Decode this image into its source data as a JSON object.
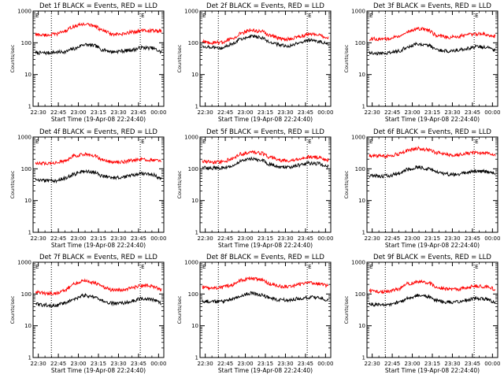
{
  "colors": {
    "events": "#000000",
    "lld": "#ff0000",
    "axis": "#000000",
    "background": "#ffffff"
  },
  "chart_data": [
    {
      "type": "line",
      "title": "Det 1f BLACK = Events, RED = LLD",
      "xlabel": "Start Time (19-Apr-08 22:24:40)",
      "ylabel": "Counts/sec",
      "y_scale": "log",
      "ylim": [
        1,
        1000
      ],
      "y_ticks": [
        "1",
        "10",
        "100",
        "1000"
      ],
      "x_ticks": [
        "22:30",
        "22:45",
        "23:00",
        "23:15",
        "23:30",
        "23:45",
        "00:00"
      ],
      "marker_labels": [
        "E",
        "E"
      ],
      "series": [
        {
          "role": "events",
          "values": [
            48,
            48,
            50,
            52,
            65,
            88,
            82,
            60,
            52,
            55,
            60,
            70,
            68,
            52
          ]
        },
        {
          "role": "lld",
          "values": [
            180,
            175,
            185,
            230,
            330,
            390,
            350,
            240,
            180,
            185,
            220,
            240,
            240,
            230
          ]
        }
      ]
    },
    {
      "type": "line",
      "title": "Det 2f BLACK = Events, RED = LLD",
      "xlabel": "Start Time (19-Apr-08 22:24:40)",
      "ylabel": "Counts/sec",
      "y_scale": "log",
      "ylim": [
        1,
        1000
      ],
      "y_ticks": [
        "1",
        "10",
        "100",
        "1000"
      ],
      "x_ticks": [
        "22:30",
        "22:45",
        "23:00",
        "23:15",
        "23:30",
        "23:45",
        "00:00"
      ],
      "marker_labels": [
        "E",
        "E"
      ],
      "series": [
        {
          "role": "events",
          "values": [
            78,
            72,
            70,
            88,
            130,
            165,
            145,
            105,
            85,
            80,
            100,
            120,
            110,
            90
          ]
        },
        {
          "role": "lld",
          "values": [
            108,
            100,
            102,
            130,
            200,
            250,
            230,
            170,
            135,
            130,
            160,
            185,
            175,
            140
          ]
        }
      ]
    },
    {
      "type": "line",
      "title": "Det 3f BLACK = Events, RED = LLD",
      "xlabel": "Start Time (19-Apr-08 22:24:40)",
      "ylabel": "Counts/sec",
      "y_scale": "log",
      "ylim": [
        1,
        1000
      ],
      "y_ticks": [
        "1",
        "10",
        "100",
        "1000"
      ],
      "x_ticks": [
        "22:30",
        "22:45",
        "23:00",
        "23:15",
        "23:30",
        "23:45",
        "00:00"
      ],
      "marker_labels": [
        "E",
        "E"
      ],
      "series": [
        {
          "role": "events",
          "values": [
            48,
            46,
            48,
            55,
            75,
            95,
            85,
            60,
            55,
            58,
            65,
            75,
            72,
            58
          ]
        },
        {
          "role": "lld",
          "values": [
            135,
            130,
            135,
            160,
            230,
            280,
            250,
            170,
            150,
            155,
            175,
            190,
            185,
            160
          ]
        }
      ]
    },
    {
      "type": "line",
      "title": "Det 4f BLACK = Events, RED = LLD",
      "xlabel": "Start Time (19-Apr-08 22:24:40)",
      "ylabel": "Counts/sec",
      "y_scale": "log",
      "ylim": [
        1,
        1000
      ],
      "y_ticks": [
        "1",
        "10",
        "100",
        "1000"
      ],
      "x_ticks": [
        "22:30",
        "22:45",
        "23:00",
        "23:15",
        "23:30",
        "23:45",
        "00:00"
      ],
      "marker_labels": [
        "E",
        "E"
      ],
      "series": [
        {
          "role": "events",
          "values": [
            45,
            42,
            42,
            50,
            68,
            85,
            78,
            58,
            52,
            55,
            62,
            70,
            66,
            50
          ]
        },
        {
          "role": "lld",
          "values": [
            150,
            145,
            150,
            175,
            250,
            290,
            260,
            185,
            160,
            165,
            185,
            200,
            190,
            170
          ]
        }
      ]
    },
    {
      "type": "line",
      "title": "Det 5f BLACK = Events, RED = LLD",
      "xlabel": "Start Time (19-Apr-08 22:24:40)",
      "ylabel": "Counts/sec",
      "y_scale": "log",
      "ylim": [
        1,
        1000
      ],
      "y_ticks": [
        "1",
        "10",
        "100",
        "1000"
      ],
      "x_ticks": [
        "22:30",
        "22:45",
        "23:00",
        "23:15",
        "23:30",
        "23:45",
        "00:00"
      ],
      "marker_labels": [
        "E",
        "E"
      ],
      "series": [
        {
          "role": "events",
          "values": [
            110,
            105,
            105,
            125,
            170,
            210,
            190,
            140,
            115,
            110,
            130,
            150,
            145,
            120
          ]
        },
        {
          "role": "lld",
          "values": [
            170,
            160,
            165,
            200,
            290,
            340,
            310,
            230,
            185,
            180,
            210,
            240,
            230,
            190
          ]
        }
      ]
    },
    {
      "type": "line",
      "title": "Det 6f BLACK = Events, RED = LLD",
      "xlabel": "Start Time (19-Apr-08 22:24:40)",
      "ylabel": "Counts/sec",
      "y_scale": "log",
      "ylim": [
        1,
        1000
      ],
      "y_ticks": [
        "1",
        "10",
        "100",
        "1000"
      ],
      "x_ticks": [
        "22:30",
        "22:45",
        "23:00",
        "23:15",
        "23:30",
        "23:45",
        "00:00"
      ],
      "marker_labels": [
        "E",
        "E"
      ],
      "series": [
        {
          "role": "events",
          "values": [
            62,
            58,
            60,
            72,
            95,
            115,
            100,
            80,
            68,
            65,
            75,
            85,
            82,
            68
          ]
        },
        {
          "role": "lld",
          "values": [
            260,
            250,
            255,
            290,
            380,
            440,
            400,
            320,
            280,
            275,
            300,
            320,
            310,
            280
          ]
        }
      ]
    },
    {
      "type": "line",
      "title": "Det 7f BLACK = Events, RED = LLD",
      "xlabel": "Start Time (19-Apr-08 22:24:40)",
      "ylabel": "Counts/sec",
      "y_scale": "log",
      "ylim": [
        1,
        1000
      ],
      "y_ticks": [
        "1",
        "10",
        "100",
        "1000"
      ],
      "x_ticks": [
        "22:30",
        "22:45",
        "23:00",
        "23:15",
        "23:30",
        "23:45",
        "00:00"
      ],
      "marker_labels": [
        "E",
        "E"
      ],
      "series": [
        {
          "role": "events",
          "values": [
            48,
            45,
            42,
            52,
            70,
            90,
            80,
            60,
            50,
            52,
            60,
            72,
            68,
            52
          ]
        },
        {
          "role": "lld",
          "values": [
            115,
            105,
            105,
            135,
            210,
            260,
            230,
            165,
            130,
            130,
            160,
            185,
            175,
            140
          ]
        }
      ]
    },
    {
      "type": "line",
      "title": "Det 8f BLACK = Events, RED = LLD",
      "xlabel": "Start Time (19-Apr-08 22:24:40)",
      "ylabel": "Counts/sec",
      "y_scale": "log",
      "ylim": [
        1,
        1000
      ],
      "y_ticks": [
        "1",
        "10",
        "100",
        "1000"
      ],
      "x_ticks": [
        "22:30",
        "22:45",
        "23:00",
        "23:15",
        "23:30",
        "23:45",
        "00:00"
      ],
      "marker_labels": [
        "E",
        "E"
      ],
      "series": [
        {
          "role": "events",
          "values": [
            60,
            58,
            58,
            68,
            90,
            105,
            95,
            75,
            65,
            65,
            72,
            80,
            78,
            65
          ]
        },
        {
          "role": "lld",
          "values": [
            165,
            155,
            160,
            190,
            270,
            320,
            290,
            210,
            175,
            175,
            200,
            220,
            210,
            180
          ]
        }
      ]
    },
    {
      "type": "line",
      "title": "Det 9f BLACK = Events, RED = LLD",
      "xlabel": "Start Time (19-Apr-08 22:24:40)",
      "ylabel": "Counts/sec",
      "y_scale": "log",
      "ylim": [
        1,
        1000
      ],
      "y_ticks": [
        "1",
        "10",
        "100",
        "1000"
      ],
      "x_ticks": [
        "22:30",
        "22:45",
        "23:00",
        "23:15",
        "23:30",
        "23:45",
        "00:00"
      ],
      "marker_labels": [
        "E",
        "E"
      ],
      "series": [
        {
          "role": "events",
          "values": [
            48,
            46,
            46,
            55,
            72,
            90,
            82,
            62,
            55,
            56,
            64,
            74,
            70,
            56
          ]
        },
        {
          "role": "lld",
          "values": [
            125,
            118,
            120,
            145,
            210,
            250,
            225,
            165,
            140,
            140,
            160,
            178,
            170,
            145
          ]
        }
      ]
    }
  ]
}
